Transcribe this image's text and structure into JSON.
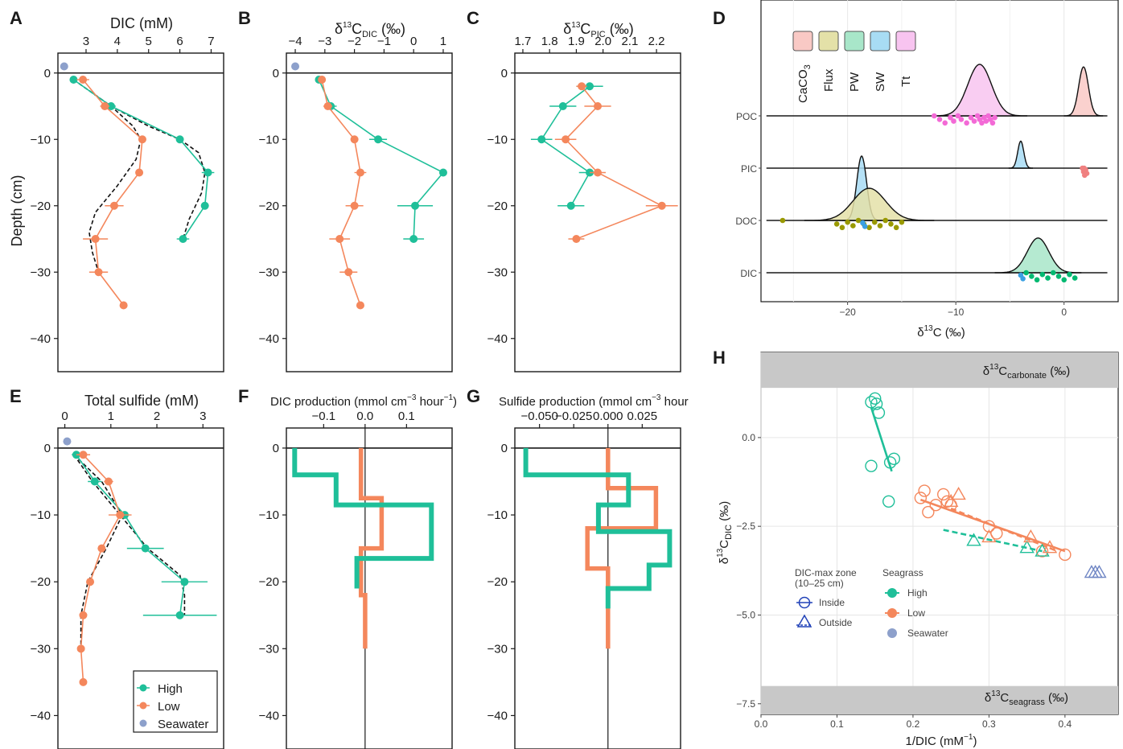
{
  "panel_labels": [
    "A",
    "B",
    "C",
    "D",
    "E",
    "F",
    "G",
    "H"
  ],
  "colors": {
    "high": "#1fbf99",
    "low": "#f4875c",
    "seawater": "#8da0cb",
    "poc": "#f36ad6",
    "pic": "#f08080",
    "doc": "#999900",
    "dic": "#00b971",
    "sw": "#3aa0e3",
    "grid": "#e6e6e6",
    "band": "#c8c8c8"
  },
  "titles": {
    "A": "DIC (mM)",
    "B_pre": "δ",
    "B_sup": "13",
    "B_main": "C",
    "B_sub": "DIC",
    "B_post": " (‰)",
    "C_pre": "δ",
    "C_sup": "13",
    "C_main": "C",
    "C_sub": "PIC",
    "C_post": " (‰)",
    "D_x_pre": "δ",
    "D_x_sup": "13",
    "D_x_post": "C (‰)",
    "E": "Total sulfide (mM)",
    "F_pre": "DIC production (mmol cm",
    "F_sup": "−3",
    "F_mid": " hour",
    "F_sup2": "−1",
    "F_post": ")",
    "G_pre": "Sulfide production (mmol cm",
    "G_sup": "−3",
    "G_post": " hour",
    "H_x_pre": "1/DIC (mM",
    "H_x_sup": "−1",
    "H_x_post": ")",
    "H_y_pre": "δ",
    "H_y_sup": "13",
    "H_y_main": "C",
    "H_y_sub": "DIC",
    "H_y_post": " (‰)",
    "H_top_pre": "δ",
    "H_top_sup": "13",
    "H_top_main": "C",
    "H_top_sub": "carbonate",
    "H_top_post": " (‰)",
    "H_bot_pre": "δ",
    "H_bot_sup": "13",
    "H_bot_main": "C",
    "H_bot_sub": "seagrass",
    "H_bot_post": " (‰)",
    "ylabel": "Depth (cm)"
  },
  "legends": {
    "E": [
      "High",
      "Low",
      "Seawater"
    ],
    "D": [
      "CaCO3",
      "Flux",
      "PW",
      "SW",
      "Tt"
    ],
    "D_rows": [
      "POC",
      "PIC",
      "DOC",
      "DIC"
    ],
    "H_shape_title": [
      "DIC-max zone",
      "(10–25 cm)"
    ],
    "H_shapes": [
      "Inside",
      "Outside"
    ],
    "H_seagrass_title": "Seagrass",
    "H_seagrass": [
      "High",
      "Low",
      "Seawater"
    ]
  },
  "chart_data": [
    {
      "panel": "A",
      "type": "line",
      "xlabel": "DIC (mM)",
      "ylabel": "Depth (cm)",
      "xlim": [
        2.1,
        7.4
      ],
      "ylim": [
        -45,
        3
      ],
      "xticks": [
        3,
        4,
        5,
        6,
        7
      ],
      "yticks": [
        0,
        -10,
        -20,
        -30,
        -40
      ],
      "series": [
        {
          "name": "High",
          "x": [
            2.6,
            3.8,
            6.0,
            6.9,
            6.8,
            6.1
          ],
          "y": [
            -1,
            -5,
            -10,
            -15,
            -20,
            -25
          ],
          "err": [
            0.1,
            0.15,
            0.05,
            0.2,
            0.1,
            0.2
          ]
        },
        {
          "name": "Low",
          "x": [
            2.9,
            3.6,
            4.8,
            4.7,
            3.9,
            3.3,
            3.4,
            4.2
          ],
          "y": [
            -1,
            -5,
            -10,
            -15,
            -20,
            -25,
            -30,
            -35
          ],
          "err": [
            0.2,
            0.15,
            0.05,
            0.05,
            0.3,
            0.4,
            0.3,
            0.05
          ]
        },
        {
          "name": "Seawater",
          "x": [
            2.3
          ],
          "y": [
            1
          ],
          "err": [
            0
          ]
        }
      ],
      "fit_curves": [
        {
          "x": [
            2.6,
            3.2,
            3.8,
            5.0,
            6.0,
            6.6,
            6.8,
            6.7,
            6.3,
            6.1
          ],
          "y": [
            -1,
            -3,
            -5,
            -8,
            -10,
            -12,
            -15,
            -18,
            -22,
            -25
          ]
        },
        {
          "x": [
            2.6,
            3.2,
            3.8,
            4.5,
            4.75,
            4.6,
            4.0,
            3.3,
            3.1,
            3.2,
            3.4
          ],
          "y": [
            -1,
            -3,
            -5,
            -8,
            -10,
            -13,
            -17,
            -21,
            -24,
            -27,
            -30
          ]
        }
      ]
    },
    {
      "panel": "B",
      "type": "line",
      "xlim": [
        -4.3,
        1.3
      ],
      "ylim": [
        -45,
        3
      ],
      "xticks": [
        -4,
        -3,
        -2,
        -1,
        0,
        1
      ],
      "yticks": [
        0,
        -10,
        -20,
        -30,
        -40
      ],
      "series": [
        {
          "name": "High",
          "x": [
            -3.2,
            -2.8,
            -1.2,
            1.0,
            0.05,
            0.0
          ],
          "y": [
            -1,
            -5,
            -10,
            -15,
            -20,
            -25
          ],
          "err": [
            0.1,
            0.2,
            0.3,
            0.1,
            0.6,
            0.35
          ]
        },
        {
          "name": "Low",
          "x": [
            -3.1,
            -2.9,
            -2.0,
            -1.8,
            -2.0,
            -2.5,
            -2.2,
            -1.8
          ],
          "y": [
            -1,
            -5,
            -10,
            -15,
            -20,
            -25,
            -30,
            -35
          ],
          "err": [
            0.1,
            0.15,
            0.1,
            0.2,
            0.3,
            0.35,
            0.3,
            0.05
          ]
        },
        {
          "name": "Seawater",
          "x": [
            -4.0
          ],
          "y": [
            1
          ],
          "err": [
            0
          ]
        }
      ]
    },
    {
      "panel": "C",
      "type": "line",
      "xlim": [
        1.67,
        2.29
      ],
      "ylim": [
        -45,
        3
      ],
      "xticks": [
        1.7,
        1.8,
        1.9,
        2.0,
        2.1,
        2.2
      ],
      "yticks": [
        0,
        -10,
        -20,
        -30,
        -40
      ],
      "series": [
        {
          "name": "High",
          "x": [
            1.95,
            1.85,
            1.77,
            1.95,
            1.88
          ],
          "y": [
            -2,
            -5,
            -10,
            -15,
            -20
          ],
          "err": [
            0.05,
            0.05,
            0.04,
            0.04,
            0.05
          ]
        },
        {
          "name": "Low",
          "x": [
            1.92,
            1.98,
            1.86,
            1.98,
            2.22,
            1.9
          ],
          "y": [
            -2,
            -5,
            -10,
            -15,
            -20,
            -25
          ],
          "err": [
            0.02,
            0.05,
            0.04,
            0.03,
            0.06,
            0.03
          ]
        }
      ]
    },
    {
      "panel": "D",
      "type": "area",
      "xlabel": "δ13C (‰)",
      "xlim": [
        -28,
        5
      ],
      "xticks": [
        -20,
        -10,
        0
      ],
      "rows": [
        "POC",
        "PIC",
        "DOC",
        "DIC"
      ],
      "densities": [
        {
          "row": "POC",
          "name": "Tt",
          "mean": -7.8,
          "sd": 1.1,
          "height": 2.0
        },
        {
          "row": "POC",
          "name": "CaCO3",
          "mean": 1.8,
          "sd": 0.45,
          "height": 1.9
        },
        {
          "row": "PIC",
          "name": "SW",
          "mean": -4.0,
          "sd": 0.28,
          "height": 1.05
        },
        {
          "row": "DOC",
          "name": "SW",
          "mean": -18.7,
          "sd": 0.45,
          "height": 2.5
        },
        {
          "row": "DOC",
          "name": "Flux",
          "mean": -18.0,
          "sd": 1.5,
          "height": 1.25
        },
        {
          "row": "DIC",
          "name": "PW",
          "mean": -2.4,
          "sd": 1.0,
          "height": 1.35
        }
      ],
      "points": [
        {
          "row": "POC",
          "name": "Tt",
          "x": [
            -12.0,
            -11.5,
            -11.0,
            -10.5,
            -10.2,
            -9.8,
            -9.5,
            -9.0,
            -8.6,
            -8.3,
            -8.0,
            -7.8,
            -7.6,
            -7.4,
            -7.2,
            -7.0,
            -6.8,
            -6.6,
            -6.4
          ]
        },
        {
          "row": "PIC",
          "name": "CaCO3",
          "x": [
            1.7,
            1.8,
            1.9,
            2.0,
            2.1,
            1.85,
            1.95
          ]
        },
        {
          "row": "DOC",
          "name": "Flux",
          "x": [
            -26.0,
            -21.0,
            -20.5,
            -20.0,
            -19.5,
            -19.0,
            -18.5,
            -18.0,
            -17.5,
            -17.0,
            -16.5,
            -16.0,
            -15.5,
            -15.0
          ]
        },
        {
          "row": "DOC",
          "name": "SW",
          "x": [
            -18.6,
            -18.4
          ]
        },
        {
          "row": "DIC",
          "name": "PW",
          "x": [
            -3.5,
            -3.0,
            -2.5,
            -2.0,
            -1.5,
            -1.0,
            -0.5,
            0.0,
            0.5,
            1.0
          ]
        },
        {
          "row": "DIC",
          "name": "SW",
          "x": [
            -4.0,
            -3.8
          ]
        }
      ]
    },
    {
      "panel": "E",
      "type": "line",
      "xlabel": "Total sulfide (mM)",
      "xlim": [
        -0.15,
        3.45
      ],
      "ylim": [
        -45,
        3
      ],
      "xticks": [
        0,
        1,
        2,
        3
      ],
      "yticks": [
        0,
        -10,
        -20,
        -30,
        -40
      ],
      "series": [
        {
          "name": "High",
          "x": [
            0.25,
            0.65,
            1.3,
            1.75,
            2.6,
            2.5
          ],
          "y": [
            -1,
            -5,
            -10,
            -15,
            -20,
            -25
          ],
          "err": [
            0.1,
            0.15,
            0.1,
            0.4,
            0.5,
            0.8
          ]
        },
        {
          "name": "Low",
          "x": [
            0.4,
            0.95,
            1.2,
            0.8,
            0.55,
            0.4,
            0.35,
            0.4
          ],
          "y": [
            -1,
            -5,
            -10,
            -15,
            -20,
            -25,
            -30,
            -35
          ],
          "err": [
            0.15,
            0.1,
            0.25,
            0.05,
            0.05,
            0.05,
            0.05,
            0.05
          ]
        },
        {
          "name": "Seawater",
          "x": [
            0.05
          ],
          "y": [
            1
          ],
          "err": [
            0
          ]
        }
      ],
      "fit_curves": [
        {
          "x": [
            0.2,
            0.6,
            1.2,
            1.8,
            2.5,
            2.6,
            2.6
          ],
          "y": [
            -1,
            -5,
            -10,
            -15,
            -19,
            -22,
            -25
          ]
        },
        {
          "x": [
            0.2,
            0.8,
            1.25,
            0.9,
            0.5,
            0.35,
            0.35
          ],
          "y": [
            -1,
            -5,
            -10,
            -15,
            -20,
            -25,
            -30
          ]
        }
      ]
    },
    {
      "panel": "F",
      "type": "line",
      "xlabel": "DIC production (mmol cm−3 hour−1)",
      "xlim": [
        -0.19,
        0.21
      ],
      "ylim": [
        -45,
        3
      ],
      "xticks": [
        -0.1,
        0.0,
        0.1
      ],
      "yticks": [
        0,
        -10,
        -20,
        -30,
        -40
      ],
      "series": [
        {
          "name": "High",
          "steps": [
            [
              -0.17,
              0,
              -4
            ],
            [
              -0.07,
              -4,
              -8.5
            ],
            [
              0.16,
              -8.5,
              -16.5
            ],
            [
              -0.02,
              -16.5,
              -21
            ]
          ]
        },
        {
          "name": "Low",
          "steps": [
            [
              -0.01,
              0,
              -7.5
            ],
            [
              0.04,
              -7.5,
              -15
            ],
            [
              -0.01,
              -15,
              -22
            ],
            [
              0.0,
              -22,
              -30
            ]
          ]
        }
      ]
    },
    {
      "panel": "G",
      "type": "line",
      "xlabel": "Sulfide production (mmol cm−3 hour",
      "xlim": [
        -0.068,
        0.053
      ],
      "ylim": [
        -45,
        3
      ],
      "xticks": [
        -0.05,
        -0.025,
        0.0,
        0.025
      ],
      "yticks": [
        0,
        -10,
        -20,
        -30,
        -40
      ],
      "series": [
        {
          "name": "High",
          "steps": [
            [
              -0.06,
              0,
              -4
            ],
            [
              0.015,
              -4,
              -8.5
            ],
            [
              -0.007,
              -8.5,
              -12.5
            ],
            [
              0.045,
              -12.5,
              -17.5
            ],
            [
              0.03,
              -17.5,
              -21
            ],
            [
              0.0,
              -21,
              -24
            ]
          ]
        },
        {
          "name": "Low",
          "steps": [
            [
              0.0,
              0,
              -6
            ],
            [
              0.035,
              -6,
              -12
            ],
            [
              -0.015,
              -12,
              -18
            ],
            [
              0.0,
              -18,
              -30
            ]
          ]
        }
      ]
    },
    {
      "panel": "H",
      "type": "scatter",
      "xlabel": "1/DIC (mM−1)",
      "xlim": [
        0.0,
        0.47
      ],
      "ylim": [
        -7.8,
        2.4
      ],
      "xticks": [
        0.0,
        0.1,
        0.2,
        0.3,
        0.4
      ],
      "yticks": [
        0.0,
        -2.5,
        -5.0,
        -7.5
      ],
      "bands": [
        {
          "label": "δ13Ccarbonate (‰)",
          "y": [
            1.4,
            2.4
          ]
        },
        {
          "label": "δ13Cseagrass (‰)",
          "y": [
            -7.8,
            -7.0
          ]
        }
      ],
      "series": [
        {
          "name": "High",
          "shape": "circle",
          "x": [
            0.145,
            0.15,
            0.152,
            0.155,
            0.145,
            0.17,
            0.175,
            0.168
          ],
          "y": [
            1.0,
            1.1,
            0.95,
            0.7,
            -0.8,
            -0.7,
            -0.6,
            -1.8
          ]
        },
        {
          "name": "Low",
          "shape": "circle",
          "x": [
            0.21,
            0.215,
            0.22,
            0.23,
            0.24,
            0.245,
            0.25,
            0.3,
            0.31,
            0.37,
            0.4
          ],
          "y": [
            -1.7,
            -1.5,
            -2.1,
            -1.9,
            -1.6,
            -1.8,
            -1.9,
            -2.5,
            -2.7,
            -3.2,
            -3.3
          ]
        },
        {
          "name": "High",
          "shape": "triangle",
          "x": [
            0.28,
            0.35,
            0.37
          ],
          "y": [
            -2.9,
            -3.1,
            -3.2
          ]
        },
        {
          "name": "Low",
          "shape": "triangle",
          "x": [
            0.25,
            0.26,
            0.3,
            0.355,
            0.38
          ],
          "y": [
            -1.8,
            -1.6,
            -2.8,
            -2.8,
            -3.1
          ]
        },
        {
          "name": "Seawater",
          "shape": "triangle",
          "x": [
            0.435,
            0.44,
            0.445
          ],
          "y": [
            -3.8,
            -3.8,
            -3.8
          ]
        }
      ],
      "fits": [
        {
          "name": "High",
          "style": "solid",
          "x": [
            0.145,
            0.172
          ],
          "y": [
            0.85,
            -0.95
          ]
        },
        {
          "name": "Low",
          "style": "solid",
          "x": [
            0.21,
            0.4
          ],
          "y": [
            -1.75,
            -3.2
          ]
        },
        {
          "name": "Low",
          "style": "dashed",
          "x": [
            0.25,
            0.39
          ],
          "y": [
            -2.0,
            -3.2
          ]
        },
        {
          "name": "High",
          "style": "dashed",
          "x": [
            0.24,
            0.37
          ],
          "y": [
            -2.6,
            -3.2
          ]
        }
      ]
    }
  ]
}
